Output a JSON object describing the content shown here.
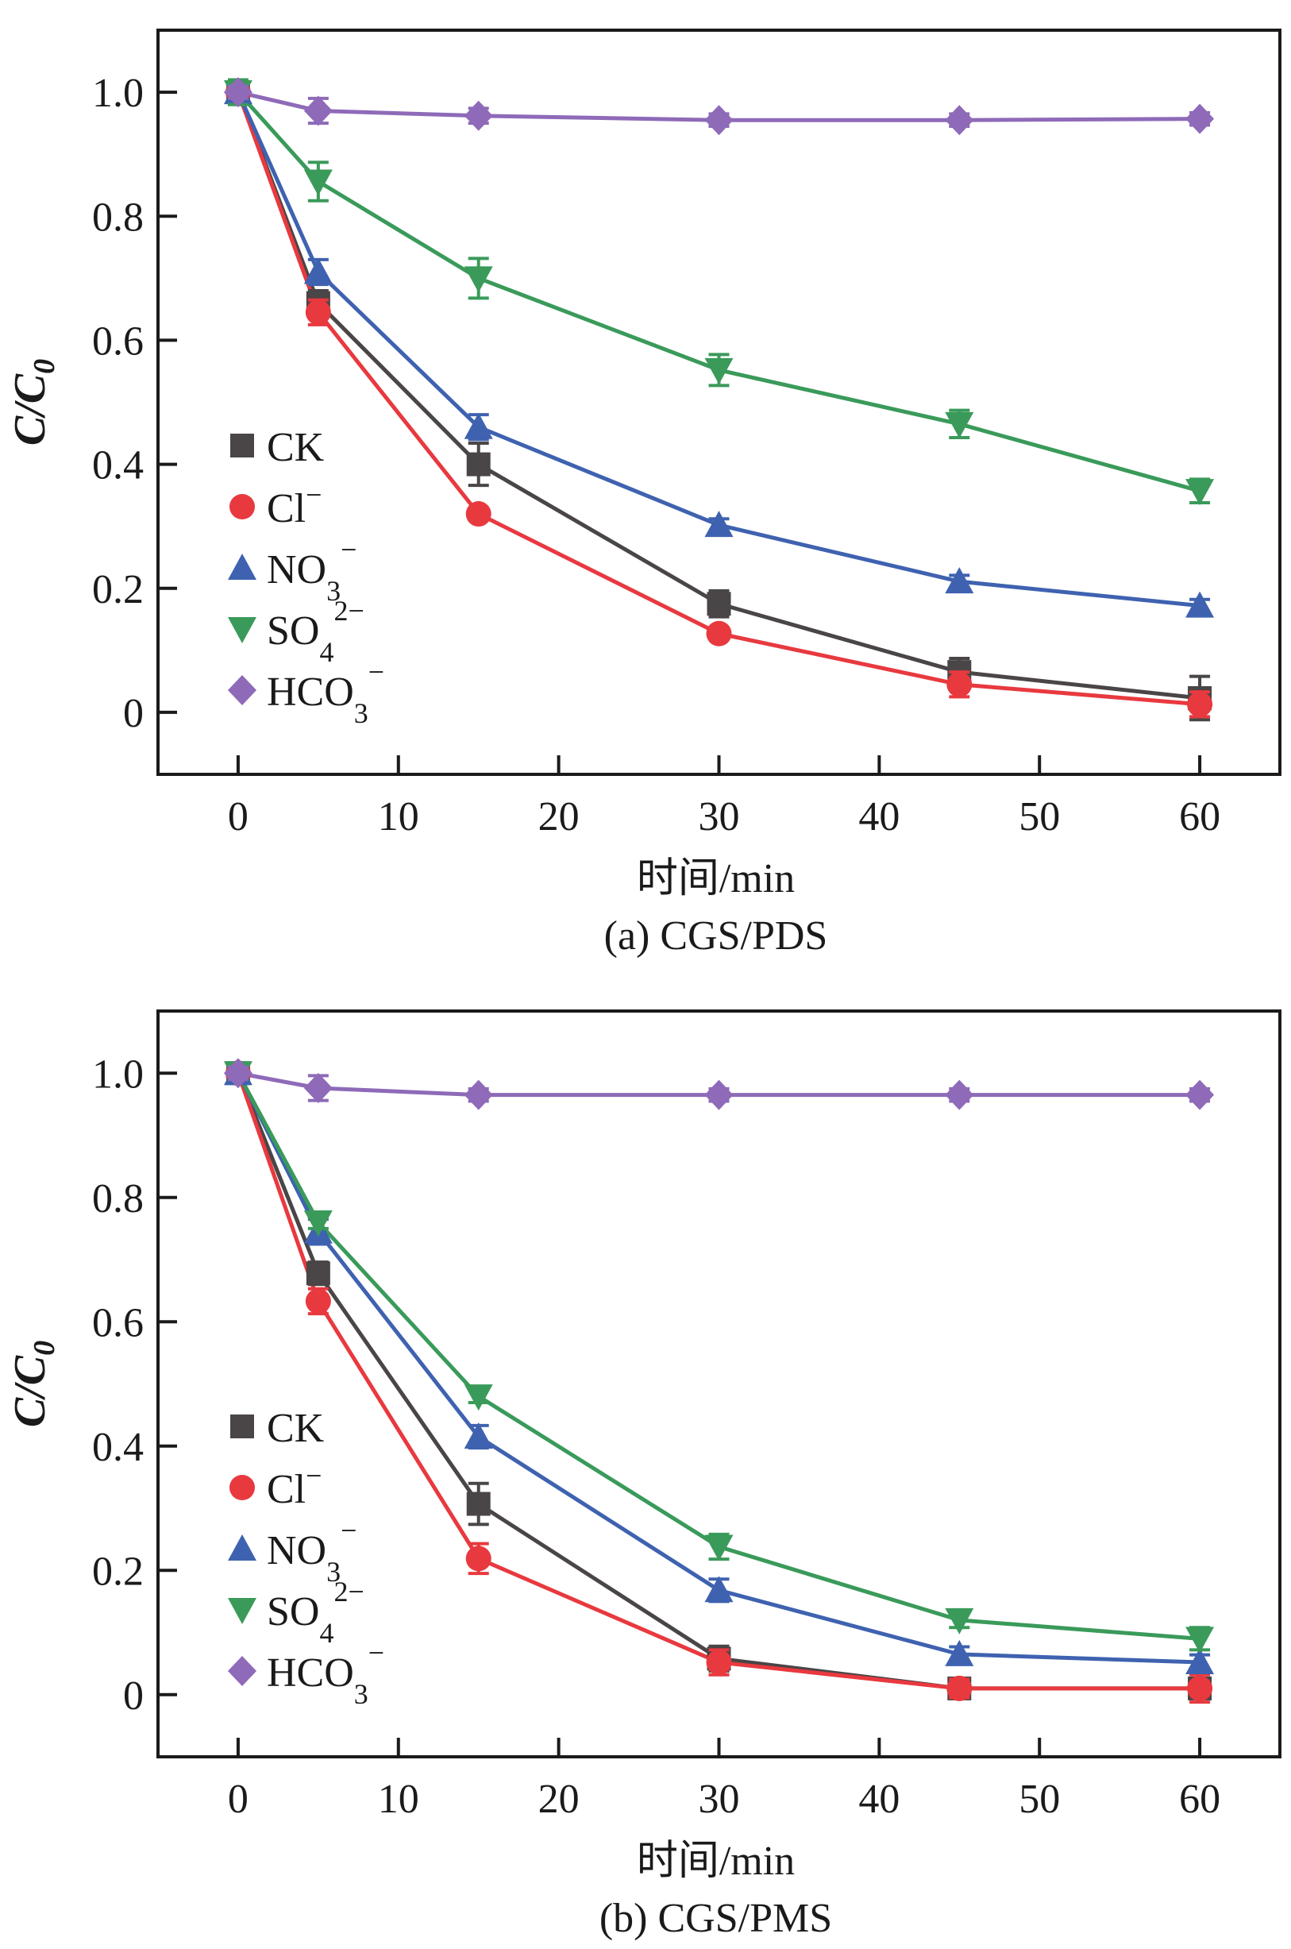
{
  "chart_data": [
    {
      "id": "a",
      "type": "line",
      "title": "(a) CGS/PDS",
      "xlabel": "时间/min",
      "ylabel": "C/C",
      "ylabel_sub": "0",
      "xlim": [
        -5,
        65
      ],
      "ylim": [
        -0.1,
        1.1
      ],
      "xticks": [
        0,
        10,
        20,
        30,
        40,
        50,
        60
      ],
      "yticks": [
        0,
        0.2,
        0.4,
        0.6,
        0.8,
        1.0
      ],
      "ytick_labels": [
        "0",
        "0.2",
        "0.4",
        "0.6",
        "0.8",
        "1.0"
      ],
      "grid": false,
      "legend_position": "center-left",
      "x": [
        0,
        5,
        15,
        30,
        45,
        60
      ],
      "series": [
        {
          "name": "CK",
          "sup": "",
          "sub": "",
          "marker": "square",
          "color": "#4a4546",
          "values": [
            1.0,
            0.66,
            0.4,
            0.175,
            0.065,
            0.023
          ],
          "errors": [
            0.01,
            0.02,
            0.034,
            0.021,
            0.022,
            0.035
          ]
        },
        {
          "name": "Cl",
          "sup": "−",
          "sub": "",
          "marker": "circle",
          "color": "#e8393f",
          "values": [
            1.0,
            0.645,
            0.32,
            0.127,
            0.045,
            0.013
          ],
          "errors": [
            0.01,
            0.02,
            0.01,
            0.008,
            0.02,
            0.02
          ]
        },
        {
          "name": "NO",
          "sup": "−",
          "sub": "3",
          "marker": "triangle-up",
          "color": "#3f62b0",
          "values": [
            1.0,
            0.71,
            0.46,
            0.302,
            0.211,
            0.172
          ],
          "errors": [
            0.01,
            0.02,
            0.02,
            0.01,
            0.01,
            0.01
          ]
        },
        {
          "name": "SO",
          "sup": "2−",
          "sub": "4",
          "marker": "triangle-down",
          "color": "#3a9a5a",
          "values": [
            1.0,
            0.856,
            0.7,
            0.552,
            0.465,
            0.357
          ],
          "errors": [
            0.02,
            0.031,
            0.032,
            0.025,
            0.022,
            0.019
          ]
        },
        {
          "name": "HCO",
          "sup": "−",
          "sub": "3",
          "marker": "diamond",
          "color": "#8e6ab8",
          "values": [
            1.0,
            0.97,
            0.962,
            0.955,
            0.955,
            0.957
          ],
          "errors": [
            0.01,
            0.02,
            0.012,
            0.01,
            0.01,
            0.01
          ]
        }
      ]
    },
    {
      "id": "b",
      "type": "line",
      "title": "(b) CGS/PMS",
      "xlabel": "时间/min",
      "ylabel": "C/C",
      "ylabel_sub": "0",
      "xlim": [
        -5,
        65
      ],
      "ylim": [
        -0.1,
        1.1
      ],
      "xticks": [
        0,
        10,
        20,
        30,
        40,
        50,
        60
      ],
      "yticks": [
        0,
        0.2,
        0.4,
        0.6,
        0.8,
        1.0
      ],
      "ytick_labels": [
        "0",
        "0.2",
        "0.4",
        "0.6",
        "0.8",
        "1.0"
      ],
      "grid": false,
      "legend_position": "center-left",
      "x": [
        0,
        5,
        15,
        30,
        45,
        60
      ],
      "series": [
        {
          "name": "CK",
          "sup": "",
          "sub": "",
          "marker": "square",
          "color": "#4a4546",
          "values": [
            1.0,
            0.678,
            0.307,
            0.058,
            0.01,
            0.01
          ],
          "errors": [
            0.01,
            0.018,
            0.033,
            0.02,
            0.01,
            0.015
          ]
        },
        {
          "name": "Cl",
          "sup": "−",
          "sub": "",
          "marker": "circle",
          "color": "#e8393f",
          "values": [
            1.0,
            0.633,
            0.219,
            0.052,
            0.01,
            0.01
          ],
          "errors": [
            0.01,
            0.02,
            0.024,
            0.02,
            0.015,
            0.022
          ]
        },
        {
          "name": "NO",
          "sup": "−",
          "sub": "3",
          "marker": "triangle-up",
          "color": "#3f62b0",
          "values": [
            1.0,
            0.745,
            0.415,
            0.168,
            0.065,
            0.052
          ],
          "errors": [
            0.01,
            0.02,
            0.018,
            0.018,
            0.012,
            0.012
          ]
        },
        {
          "name": "SO",
          "sup": "2−",
          "sub": "4",
          "marker": "triangle-down",
          "color": "#3a9a5a",
          "values": [
            1.0,
            0.76,
            0.48,
            0.238,
            0.12,
            0.09
          ],
          "errors": [
            0.01,
            0.01,
            0.01,
            0.02,
            0.012,
            0.018
          ]
        },
        {
          "name": "HCO",
          "sup": "−",
          "sub": "3",
          "marker": "diamond",
          "color": "#8e6ab8",
          "values": [
            1.0,
            0.976,
            0.965,
            0.965,
            0.965,
            0.965
          ],
          "errors": [
            0.01,
            0.02,
            0.01,
            0.01,
            0.01,
            0.01
          ]
        }
      ]
    }
  ]
}
